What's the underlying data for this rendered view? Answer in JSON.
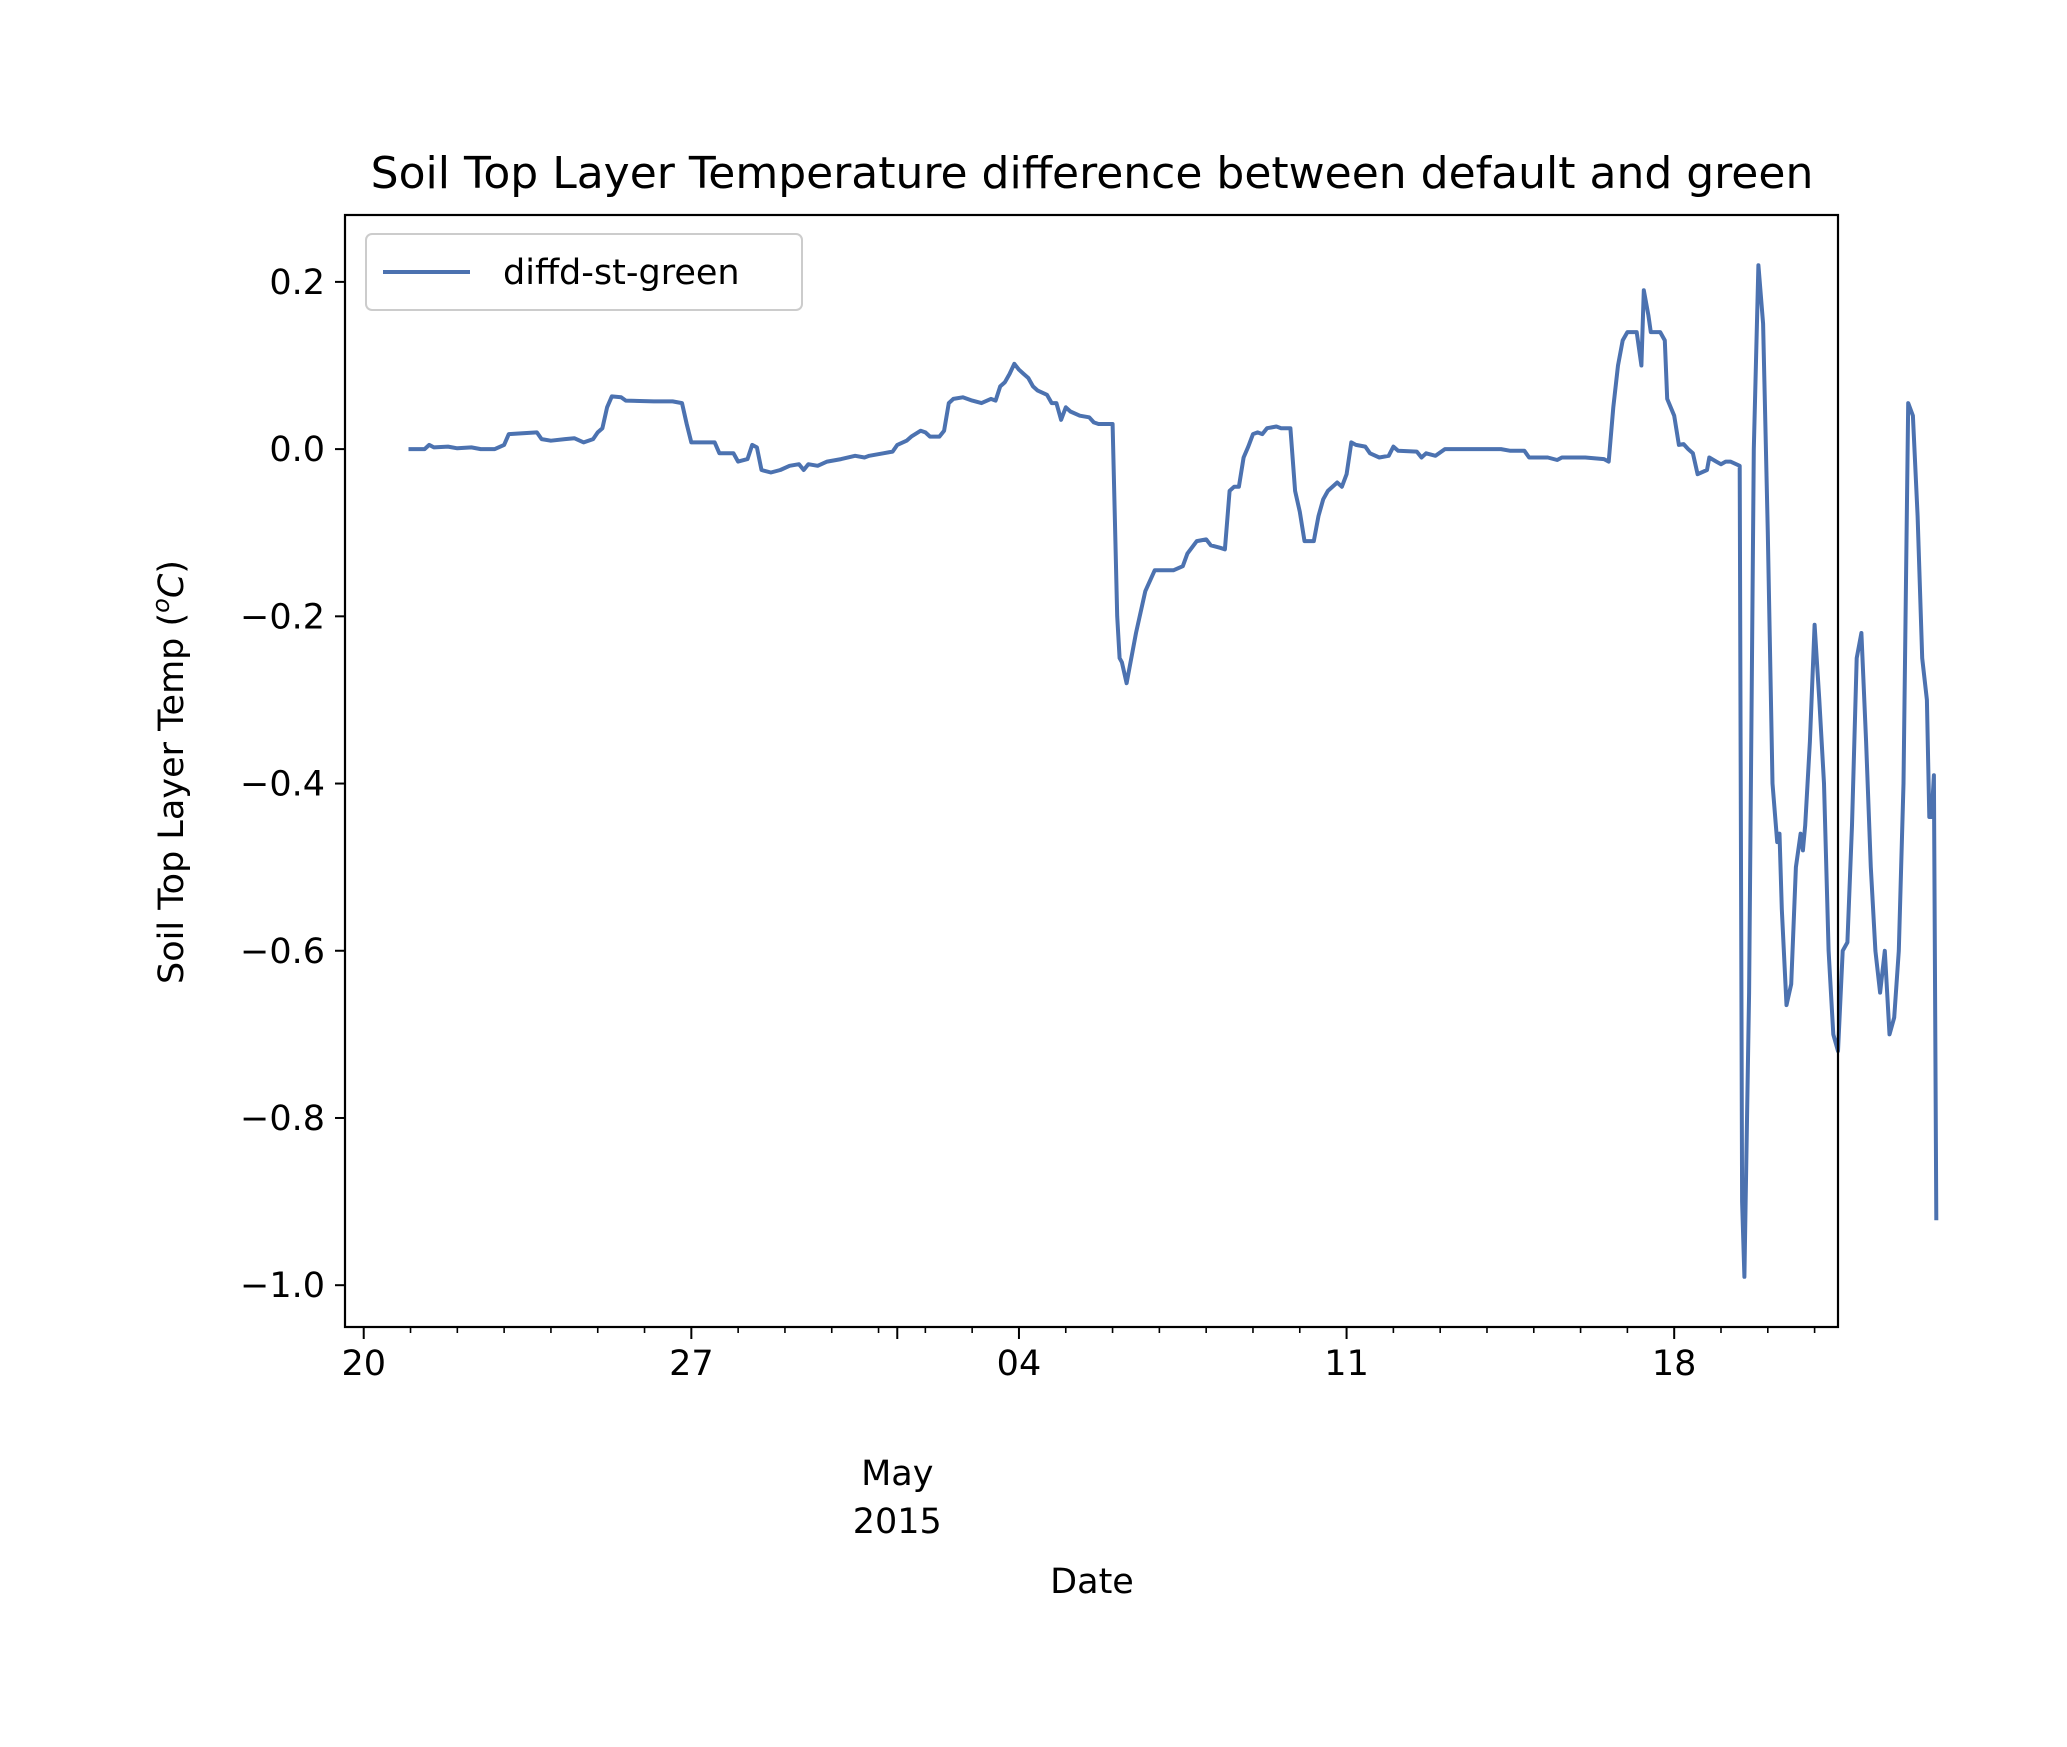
{
  "chart_data": {
    "type": "line",
    "title": "Soil Top Layer Temperature difference between default and green",
    "xlabel": "Date",
    "ylabel": "Soil Top Layer Temp (",
    "ylabel_unit_sup": "o",
    "ylabel_unit": "C",
    "ylabel_close": ")",
    "x_tick_labels": [
      "20",
      "27",
      "04",
      "11",
      "18"
    ],
    "x_tick_days": [
      0,
      7,
      14,
      21,
      28
    ],
    "x_secondary_labels": [
      "May",
      "2015"
    ],
    "x_secondary_day": 11.4,
    "x_range_days": [
      -0.4,
      31.5
    ],
    "ylim": [
      -1.05,
      0.28
    ],
    "y_ticks": [
      0.2,
      0.0,
      -0.2,
      -0.4,
      -0.6,
      -0.8,
      -1.0
    ],
    "y_tick_labels": [
      "0.2",
      "0.0",
      "−0.2",
      "−0.4",
      "−0.6",
      "−0.8",
      "−1.0"
    ],
    "grid": false,
    "legend_position": "top-left",
    "color": "#4c72b0",
    "series": [
      {
        "name": "diffd-st-green",
        "points": [
          [
            1.0,
            0.0
          ],
          [
            1.3,
            0.0
          ],
          [
            1.4,
            0.005
          ],
          [
            1.5,
            0.002
          ],
          [
            1.8,
            0.003
          ],
          [
            2.0,
            0.001
          ],
          [
            2.3,
            0.002
          ],
          [
            2.5,
            0.0
          ],
          [
            2.8,
            0.0
          ],
          [
            3.0,
            0.005
          ],
          [
            3.1,
            0.018
          ],
          [
            3.4,
            0.019
          ],
          [
            3.7,
            0.02
          ],
          [
            3.8,
            0.012
          ],
          [
            4.0,
            0.01
          ],
          [
            4.3,
            0.012
          ],
          [
            4.5,
            0.013
          ],
          [
            4.7,
            0.008
          ],
          [
            4.9,
            0.012
          ],
          [
            5.0,
            0.02
          ],
          [
            5.1,
            0.025
          ],
          [
            5.2,
            0.05
          ],
          [
            5.3,
            0.063
          ],
          [
            5.5,
            0.062
          ],
          [
            5.6,
            0.058
          ],
          [
            6.2,
            0.057
          ],
          [
            6.6,
            0.057
          ],
          [
            6.8,
            0.055
          ],
          [
            6.9,
            0.03
          ],
          [
            7.0,
            0.008
          ],
          [
            7.5,
            0.008
          ],
          [
            7.6,
            -0.005
          ],
          [
            7.9,
            -0.005
          ],
          [
            8.0,
            -0.015
          ],
          [
            8.2,
            -0.012
          ],
          [
            8.3,
            0.005
          ],
          [
            8.4,
            0.002
          ],
          [
            8.5,
            -0.025
          ],
          [
            8.7,
            -0.028
          ],
          [
            8.9,
            -0.025
          ],
          [
            9.1,
            -0.02
          ],
          [
            9.3,
            -0.018
          ],
          [
            9.4,
            -0.025
          ],
          [
            9.5,
            -0.018
          ],
          [
            9.7,
            -0.02
          ],
          [
            9.9,
            -0.015
          ],
          [
            10.2,
            -0.012
          ],
          [
            10.5,
            -0.008
          ],
          [
            10.7,
            -0.01
          ],
          [
            10.8,
            -0.008
          ],
          [
            11.1,
            -0.005
          ],
          [
            11.3,
            -0.003
          ],
          [
            11.4,
            0.005
          ],
          [
            11.6,
            0.01
          ],
          [
            11.7,
            0.015
          ],
          [
            11.9,
            0.022
          ],
          [
            12.0,
            0.02
          ],
          [
            12.1,
            0.015
          ],
          [
            12.3,
            0.015
          ],
          [
            12.4,
            0.022
          ],
          [
            12.5,
            0.055
          ],
          [
            12.6,
            0.06
          ],
          [
            12.8,
            0.062
          ],
          [
            13.0,
            0.058
          ],
          [
            13.2,
            0.055
          ],
          [
            13.4,
            0.06
          ],
          [
            13.5,
            0.058
          ],
          [
            13.6,
            0.075
          ],
          [
            13.7,
            0.08
          ],
          [
            13.8,
            0.09
          ],
          [
            13.9,
            0.102
          ],
          [
            14.0,
            0.095
          ],
          [
            14.1,
            0.09
          ],
          [
            14.2,
            0.085
          ],
          [
            14.3,
            0.075
          ],
          [
            14.4,
            0.07
          ],
          [
            14.6,
            0.065
          ],
          [
            14.7,
            0.055
          ],
          [
            14.8,
            0.055
          ],
          [
            14.9,
            0.035
          ],
          [
            15.0,
            0.05
          ],
          [
            15.1,
            0.045
          ],
          [
            15.3,
            0.04
          ],
          [
            15.5,
            0.038
          ],
          [
            15.6,
            0.032
          ],
          [
            15.7,
            0.03
          ],
          [
            16.0,
            0.03
          ],
          [
            16.1,
            -0.2
          ],
          [
            16.15,
            -0.25
          ],
          [
            16.2,
            -0.255
          ],
          [
            16.3,
            -0.28
          ],
          [
            16.5,
            -0.22
          ],
          [
            16.7,
            -0.17
          ],
          [
            16.9,
            -0.145
          ],
          [
            17.3,
            -0.145
          ],
          [
            17.5,
            -0.14
          ],
          [
            17.6,
            -0.125
          ],
          [
            17.8,
            -0.11
          ],
          [
            18.0,
            -0.108
          ],
          [
            18.1,
            -0.115
          ],
          [
            18.3,
            -0.118
          ],
          [
            18.4,
            -0.12
          ],
          [
            18.5,
            -0.05
          ],
          [
            18.6,
            -0.045
          ],
          [
            18.7,
            -0.045
          ],
          [
            18.8,
            -0.01
          ],
          [
            18.9,
            0.003
          ],
          [
            19.0,
            0.018
          ],
          [
            19.1,
            0.02
          ],
          [
            19.2,
            0.018
          ],
          [
            19.3,
            0.025
          ],
          [
            19.5,
            0.027
          ],
          [
            19.6,
            0.025
          ],
          [
            19.8,
            0.025
          ],
          [
            19.9,
            -0.05
          ],
          [
            20.0,
            -0.075
          ],
          [
            20.1,
            -0.11
          ],
          [
            20.3,
            -0.11
          ],
          [
            20.4,
            -0.08
          ],
          [
            20.5,
            -0.06
          ],
          [
            20.6,
            -0.05
          ],
          [
            20.8,
            -0.04
          ],
          [
            20.9,
            -0.045
          ],
          [
            21.0,
            -0.03
          ],
          [
            21.1,
            0.008
          ],
          [
            21.2,
            0.005
          ],
          [
            21.4,
            0.003
          ],
          [
            21.5,
            -0.005
          ],
          [
            21.7,
            -0.01
          ],
          [
            21.9,
            -0.008
          ],
          [
            22.0,
            0.003
          ],
          [
            22.1,
            -0.002
          ],
          [
            22.5,
            -0.003
          ],
          [
            22.6,
            -0.01
          ],
          [
            22.7,
            -0.005
          ],
          [
            22.9,
            -0.008
          ],
          [
            23.1,
            0.0
          ],
          [
            23.5,
            0.0
          ],
          [
            24.0,
            0.0
          ],
          [
            24.3,
            0.0
          ],
          [
            24.5,
            -0.002
          ],
          [
            24.8,
            -0.002
          ],
          [
            24.9,
            -0.01
          ],
          [
            25.3,
            -0.01
          ],
          [
            25.5,
            -0.013
          ],
          [
            25.6,
            -0.01
          ],
          [
            26.1,
            -0.01
          ],
          [
            26.5,
            -0.012
          ],
          [
            26.6,
            -0.015
          ],
          [
            26.7,
            0.05
          ],
          [
            26.8,
            0.1
          ],
          [
            26.9,
            0.13
          ],
          [
            27.0,
            0.14
          ],
          [
            27.2,
            0.14
          ],
          [
            27.3,
            0.1
          ],
          [
            27.35,
            0.19
          ],
          [
            27.45,
            0.16
          ],
          [
            27.5,
            0.14
          ],
          [
            27.7,
            0.14
          ],
          [
            27.8,
            0.13
          ],
          [
            27.85,
            0.06
          ],
          [
            28.0,
            0.04
          ],
          [
            28.1,
            0.005
          ],
          [
            28.2,
            0.006
          ],
          [
            28.3,
            0.0
          ],
          [
            28.4,
            -0.005
          ],
          [
            28.5,
            -0.03
          ],
          [
            28.7,
            -0.025
          ],
          [
            28.75,
            -0.01
          ],
          [
            28.9,
            -0.015
          ],
          [
            29.0,
            -0.018
          ],
          [
            29.1,
            -0.015
          ],
          [
            29.2,
            -0.015
          ],
          [
            29.4,
            -0.02
          ],
          [
            29.45,
            -0.9
          ],
          [
            29.5,
            -0.99
          ],
          [
            29.6,
            -0.65
          ],
          [
            29.7,
            0.0
          ],
          [
            29.8,
            0.22
          ],
          [
            29.9,
            0.15
          ],
          [
            30.0,
            -0.1
          ],
          [
            30.1,
            -0.4
          ],
          [
            30.2,
            -0.47
          ],
          [
            30.25,
            -0.46
          ],
          [
            30.3,
            -0.55
          ],
          [
            30.4,
            -0.665
          ],
          [
            30.5,
            -0.64
          ],
          [
            30.6,
            -0.5
          ],
          [
            30.7,
            -0.46
          ],
          [
            30.75,
            -0.48
          ],
          [
            30.8,
            -0.45
          ],
          [
            30.9,
            -0.35
          ],
          [
            31.0,
            -0.21
          ],
          [
            31.1,
            -0.3
          ],
          [
            31.2,
            -0.4
          ],
          [
            31.3,
            -0.6
          ],
          [
            31.4,
            -0.7
          ],
          [
            31.5,
            -0.72
          ],
          [
            31.6,
            -0.6
          ],
          [
            31.7,
            -0.59
          ],
          [
            31.8,
            -0.45
          ],
          [
            31.9,
            -0.25
          ],
          [
            32.0,
            -0.22
          ],
          [
            32.1,
            -0.35
          ],
          [
            32.2,
            -0.5
          ],
          [
            32.3,
            -0.6
          ],
          [
            32.4,
            -0.65
          ],
          [
            32.5,
            -0.6
          ],
          [
            32.6,
            -0.7
          ],
          [
            32.7,
            -0.68
          ],
          [
            32.8,
            -0.6
          ],
          [
            32.9,
            -0.4
          ],
          [
            33.0,
            0.055
          ],
          [
            33.1,
            0.04
          ],
          [
            33.2,
            -0.08
          ],
          [
            33.3,
            -0.25
          ],
          [
            33.4,
            -0.3
          ],
          [
            33.45,
            -0.44
          ],
          [
            33.5,
            -0.44
          ],
          [
            33.55,
            -0.39
          ],
          [
            33.6,
            -0.92
          ]
        ]
      }
    ]
  }
}
